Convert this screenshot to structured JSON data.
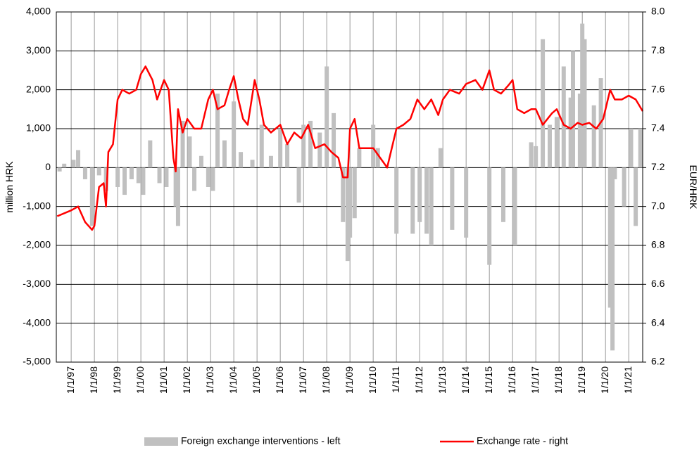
{
  "chart_data": {
    "type": "bar-line",
    "xlim": [
      1996.36,
      2021.6
    ],
    "xticks": [
      {
        "value": 1997,
        "label": "1/1/97"
      },
      {
        "value": 1998,
        "label": "1/1/98"
      },
      {
        "value": 1999,
        "label": "1/1/99"
      },
      {
        "value": 2000,
        "label": "1/1/00"
      },
      {
        "value": 2001,
        "label": "1/1/01"
      },
      {
        "value": 2002,
        "label": "1/1/02"
      },
      {
        "value": 2003,
        "label": "1/1/03"
      },
      {
        "value": 2004,
        "label": "1/1/04"
      },
      {
        "value": 2005,
        "label": "1/1/05"
      },
      {
        "value": 2006,
        "label": "1/1/06"
      },
      {
        "value": 2007,
        "label": "1/1/07"
      },
      {
        "value": 2008,
        "label": "1/1/08"
      },
      {
        "value": 2009,
        "label": "1/1/09"
      },
      {
        "value": 2010,
        "label": "1/1/10"
      },
      {
        "value": 2011,
        "label": "1/1/11"
      },
      {
        "value": 2012,
        "label": "1/1/12"
      },
      {
        "value": 2013,
        "label": "1/1/13"
      },
      {
        "value": 2014,
        "label": "1/1/14"
      },
      {
        "value": 2015,
        "label": "1/1/15"
      },
      {
        "value": 2016,
        "label": "1/1/16"
      },
      {
        "value": 2017,
        "label": "1/1/17"
      },
      {
        "value": 2018,
        "label": "1/1/18"
      },
      {
        "value": 2019,
        "label": "1/1/19"
      },
      {
        "value": 2020,
        "label": "1/1/20"
      },
      {
        "value": 2021,
        "label": "1/1/21"
      }
    ],
    "ylabel": "million  HRK",
    "ylim": [
      -5000,
      4000
    ],
    "yticks": [
      {
        "value": -5000,
        "label": "-5,000"
      },
      {
        "value": -4000,
        "label": "-4,000"
      },
      {
        "value": -3000,
        "label": "-3,000"
      },
      {
        "value": -2000,
        "label": "-2,000"
      },
      {
        "value": -1000,
        "label": "-1,000"
      },
      0,
      {
        "value": 1000,
        "label": "1,000"
      },
      {
        "value": 2000,
        "label": "2,000"
      },
      {
        "value": 3000,
        "label": "3,000"
      },
      {
        "value": 4000,
        "label": "4,000"
      }
    ],
    "y2label": "EUR/HRK",
    "y2lim": [
      6.2,
      8.0
    ],
    "y2ticks": [
      6.2,
      6.4,
      6.6,
      6.8,
      {
        "value": 7.0,
        "label": "7.0"
      },
      7.2,
      7.4,
      7.6,
      7.8,
      {
        "value": 8.0,
        "label": "8.0"
      }
    ],
    "grid": true,
    "legend": "bottom",
    "series": [
      {
        "name": "Foreign exchange interventions - left",
        "type": "bar",
        "color": "#c0c0c0",
        "x": [
          1996.5,
          1996.7,
          1997.1,
          1997.3,
          1997.6,
          1997.9,
          1998.2,
          1998.5,
          1999.0,
          1999.3,
          1999.6,
          1999.9,
          2000.1,
          2000.4,
          2000.8,
          2001.1,
          2001.5,
          2001.6,
          2001.8,
          2002.1,
          2002.3,
          2002.6,
          2002.9,
          2003.1,
          2003.3,
          2003.6,
          2004.0,
          2004.3,
          2004.8,
          2005.2,
          2005.6,
          2006.0,
          2006.3,
          2006.8,
          2007.0,
          2007.3,
          2007.7,
          2008.0,
          2008.3,
          2008.7,
          2008.9,
          2009.0,
          2009.2,
          2009.4,
          2010.0,
          2010.2,
          2011.0,
          2011.7,
          2012.0,
          2012.3,
          2012.5,
          2012.9,
          2013.4,
          2014.0,
          2015.0,
          2015.6,
          2016.1,
          2016.8,
          2017.0,
          2017.3,
          2017.6,
          2017.9,
          2018.2,
          2018.5,
          2018.6,
          2018.9,
          2019.0,
          2019.1,
          2019.5,
          2019.8,
          2020.2,
          2020.3,
          2020.4,
          2020.8,
          2021.1,
          2021.3,
          2021.5
        ],
        "values": [
          -100,
          100,
          200,
          450,
          -300,
          -1500,
          -200,
          -600,
          -500,
          -700,
          -300,
          -400,
          -700,
          700,
          -400,
          -500,
          -1000,
          -1500,
          1200,
          800,
          -600,
          300,
          -500,
          -600,
          1900,
          700,
          1700,
          400,
          200,
          1100,
          300,
          1000,
          600,
          -900,
          1100,
          1200,
          900,
          2600,
          1400,
          -1400,
          -2400,
          -1800,
          -1300,
          500,
          1100,
          500,
          -1700,
          -1700,
          -1400,
          -1700,
          -2000,
          500,
          -1600,
          -1800,
          -2500,
          -1400,
          -2000,
          650,
          550,
          3300,
          1100,
          1300,
          2600,
          1800,
          3000,
          1900,
          3700,
          3300,
          1600,
          2300,
          -3600,
          -4700,
          -300,
          -1000,
          1000,
          -1500,
          1000
        ]
      },
      {
        "name": "Exchange rate - right",
        "type": "line",
        "axis": "y2",
        "color": "#ff0000",
        "x": [
          1996.4,
          1997.0,
          1997.3,
          1997.6,
          1997.9,
          1998.0,
          1998.2,
          1998.4,
          1998.5,
          1998.6,
          1998.8,
          1999.0,
          1999.2,
          1999.5,
          1999.8,
          2000.0,
          2000.2,
          2000.5,
          2000.7,
          2001.0,
          2001.2,
          2001.4,
          2001.5,
          2001.6,
          2001.8,
          2002.0,
          2002.3,
          2002.6,
          2002.9,
          2003.1,
          2003.3,
          2003.6,
          2003.8,
          2004.0,
          2004.2,
          2004.4,
          2004.6,
          2004.9,
          2005.1,
          2005.3,
          2005.6,
          2006.0,
          2006.3,
          2006.6,
          2006.9,
          2007.2,
          2007.5,
          2007.9,
          2008.2,
          2008.5,
          2008.7,
          2008.9,
          2009.0,
          2009.2,
          2009.4,
          2009.7,
          2010.0,
          2010.3,
          2010.6,
          2010.9,
          2011.0,
          2011.3,
          2011.6,
          2011.9,
          2012.2,
          2012.5,
          2012.8,
          2013.0,
          2013.3,
          2013.7,
          2014.0,
          2014.4,
          2014.7,
          2015.0,
          2015.2,
          2015.5,
          2015.8,
          2016.0,
          2016.2,
          2016.5,
          2016.8,
          2017.0,
          2017.3,
          2017.5,
          2017.7,
          2017.9,
          2018.2,
          2018.5,
          2018.8,
          2019.0,
          2019.3,
          2019.6,
          2019.9,
          2020.2,
          2020.4,
          2020.7,
          2021.0,
          2021.3,
          2021.6
        ],
        "values": [
          6.95,
          6.98,
          7.0,
          6.92,
          6.88,
          6.9,
          7.1,
          7.12,
          7.0,
          7.28,
          7.32,
          7.55,
          7.6,
          7.58,
          7.6,
          7.68,
          7.72,
          7.65,
          7.55,
          7.65,
          7.6,
          7.25,
          7.18,
          7.5,
          7.38,
          7.45,
          7.4,
          7.4,
          7.55,
          7.6,
          7.5,
          7.52,
          7.6,
          7.67,
          7.55,
          7.45,
          7.42,
          7.65,
          7.55,
          7.42,
          7.38,
          7.42,
          7.32,
          7.38,
          7.35,
          7.42,
          7.3,
          7.32,
          7.28,
          7.25,
          7.15,
          7.15,
          7.4,
          7.45,
          7.3,
          7.3,
          7.3,
          7.25,
          7.2,
          7.35,
          7.4,
          7.42,
          7.45,
          7.55,
          7.5,
          7.55,
          7.47,
          7.55,
          7.6,
          7.58,
          7.63,
          7.65,
          7.6,
          7.7,
          7.6,
          7.58,
          7.62,
          7.65,
          7.5,
          7.48,
          7.5,
          7.5,
          7.42,
          7.45,
          7.48,
          7.5,
          7.42,
          7.4,
          7.43,
          7.42,
          7.43,
          7.4,
          7.45,
          7.6,
          7.55,
          7.55,
          7.57,
          7.55,
          7.49
        ]
      }
    ]
  }
}
